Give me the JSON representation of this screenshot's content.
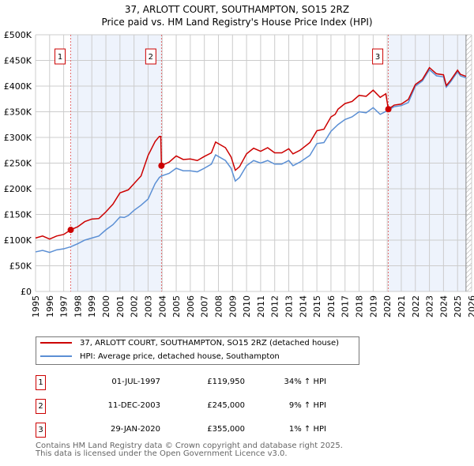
{
  "chart_data": {
    "type": "line",
    "title": "37, ARLOTT COURT, SOUTHAMPTON, SO15 2RZ",
    "subtitle": "Price paid vs. HM Land Registry's House Price Index (HPI)",
    "xlim": [
      1995,
      2026
    ],
    "ylim": [
      0,
      500000
    ],
    "yticks": [
      {
        "v": 0,
        "l": "£0"
      },
      {
        "v": 50000,
        "l": "£50K"
      },
      {
        "v": 100000,
        "l": "£100K"
      },
      {
        "v": 150000,
        "l": "£150K"
      },
      {
        "v": 200000,
        "l": "£200K"
      },
      {
        "v": 250000,
        "l": "£250K"
      },
      {
        "v": 300000,
        "l": "£300K"
      },
      {
        "v": 350000,
        "l": "£350K"
      },
      {
        "v": 400000,
        "l": "£400K"
      },
      {
        "v": 450000,
        "l": "£450K"
      },
      {
        "v": 500000,
        "l": "£500K"
      }
    ],
    "xticks": [
      "1995",
      "1996",
      "1997",
      "1998",
      "1999",
      "2000",
      "2001",
      "2002",
      "2003",
      "2004",
      "2005",
      "2006",
      "2007",
      "2008",
      "2009",
      "2010",
      "2011",
      "2012",
      "2013",
      "2014",
      "2015",
      "2016",
      "2017",
      "2018",
      "2019",
      "2020",
      "2021",
      "2022",
      "2023",
      "2024",
      "2025",
      "2026"
    ],
    "grid": true,
    "series": [
      {
        "name": "37, ARLOTT COURT, SOUTHAMPTON, SO15 2RZ (detached house)",
        "color": "#cc0000",
        "x": [
          1995,
          1995.5,
          1996,
          1996.5,
          1997,
          1997.5,
          1998,
          1998.5,
          1999,
          1999.5,
          2000,
          2000.5,
          2001,
          2001.3,
          2001.6,
          2002,
          2002.5,
          2003,
          2003.5,
          2003.8,
          2003.9,
          2003.95,
          2004.5,
          2005,
          2005.5,
          2006,
          2006.5,
          2007,
          2007.5,
          2007.8,
          2008.5,
          2008.9,
          2009.2,
          2009.5,
          2010,
          2010.5,
          2011,
          2011.5,
          2012,
          2012.5,
          2013,
          2013.3,
          2013.8,
          2014.5,
          2015,
          2015.5,
          2016,
          2016.3,
          2016.5,
          2017,
          2017.5,
          2018,
          2018.5,
          2019,
          2019.5,
          2019.9,
          2020.08,
          2020.5,
          2021,
          2021.5,
          2022,
          2022.5,
          2023,
          2023.5,
          2024,
          2024.2,
          2024.5,
          2025,
          2025.2,
          2025.6
        ],
        "y": [
          104000,
          108000,
          102000,
          108000,
          111000,
          120000,
          126000,
          136000,
          141000,
          142000,
          155000,
          170000,
          192000,
          195000,
          198000,
          210000,
          225000,
          265000,
          292000,
          302000,
          302000,
          245000,
          252000,
          264000,
          257000,
          258000,
          255000,
          263000,
          270000,
          291000,
          280000,
          262000,
          236000,
          243000,
          268000,
          279000,
          273000,
          280000,
          270000,
          270000,
          278000,
          268000,
          275000,
          290000,
          313000,
          316000,
          340000,
          345000,
          355000,
          366000,
          370000,
          382000,
          380000,
          392000,
          378000,
          385000,
          355000,
          363000,
          365000,
          374000,
          403000,
          413000,
          436000,
          424000,
          422000,
          401000,
          411000,
          431000,
          423000,
          419000
        ]
      },
      {
        "name": "HPI: Average price, detached house, Southampton",
        "color": "#5b8fd4",
        "x": [
          1995,
          1995.5,
          1996,
          1996.5,
          1997,
          1997.5,
          1998,
          1998.5,
          1999,
          1999.5,
          2000,
          2000.5,
          2001,
          2001.3,
          2001.6,
          2002,
          2002.5,
          2003,
          2003.5,
          2003.8,
          2003.95,
          2004.5,
          2005,
          2005.5,
          2006,
          2006.5,
          2007,
          2007.5,
          2007.8,
          2008.5,
          2008.9,
          2009.2,
          2009.5,
          2010,
          2010.5,
          2011,
          2011.5,
          2012,
          2012.5,
          2013,
          2013.3,
          2013.8,
          2014.5,
          2015,
          2015.5,
          2016,
          2016.5,
          2017,
          2017.5,
          2018,
          2018.5,
          2019,
          2019.5,
          2020,
          2020.5,
          2021,
          2021.5,
          2022,
          2022.5,
          2023,
          2023.5,
          2024,
          2024.2,
          2024.5,
          2025,
          2025.2,
          2025.6
        ],
        "y": [
          77000,
          80000,
          76000,
          81000,
          83000,
          87000,
          93000,
          100000,
          104000,
          108000,
          120000,
          130000,
          145000,
          144000,
          148000,
          158000,
          168000,
          180000,
          210000,
          222000,
          225000,
          230000,
          240000,
          235000,
          235000,
          233000,
          240000,
          248000,
          266000,
          255000,
          240000,
          215000,
          222000,
          245000,
          255000,
          250000,
          255000,
          248000,
          248000,
          255000,
          245000,
          252000,
          265000,
          288000,
          290000,
          312000,
          325000,
          335000,
          340000,
          350000,
          348000,
          358000,
          345000,
          352000,
          360000,
          362000,
          368000,
          400000,
          410000,
          432000,
          420000,
          418000,
          398000,
          408000,
          428000,
          420000,
          416000
        ]
      }
    ],
    "sales": [
      {
        "num": "1",
        "x": 1997.5,
        "price": 119950,
        "date": "01-JUL-1997",
        "price_label": "£119,950",
        "hpi": "34% ↑ HPI"
      },
      {
        "num": "2",
        "x": 2003.95,
        "price": 245000,
        "date": "11-DEC-2003",
        "price_label": "£245,000",
        "hpi": "9% ↑ HPI"
      },
      {
        "num": "3",
        "x": 2020.08,
        "price": 355000,
        "date": "29-JAN-2020",
        "price_label": "£355,000",
        "hpi": "1% ↑ HPI"
      }
    ],
    "shaded": [
      [
        1997.5,
        2003.95
      ],
      [
        2020.08,
        2025.6
      ]
    ],
    "hatched_from": 2025.6
  },
  "footer": {
    "line1": "Contains HM Land Registry data © Crown copyright and database right 2025.",
    "line2": "This data is licensed under the Open Government Licence v3.0."
  }
}
